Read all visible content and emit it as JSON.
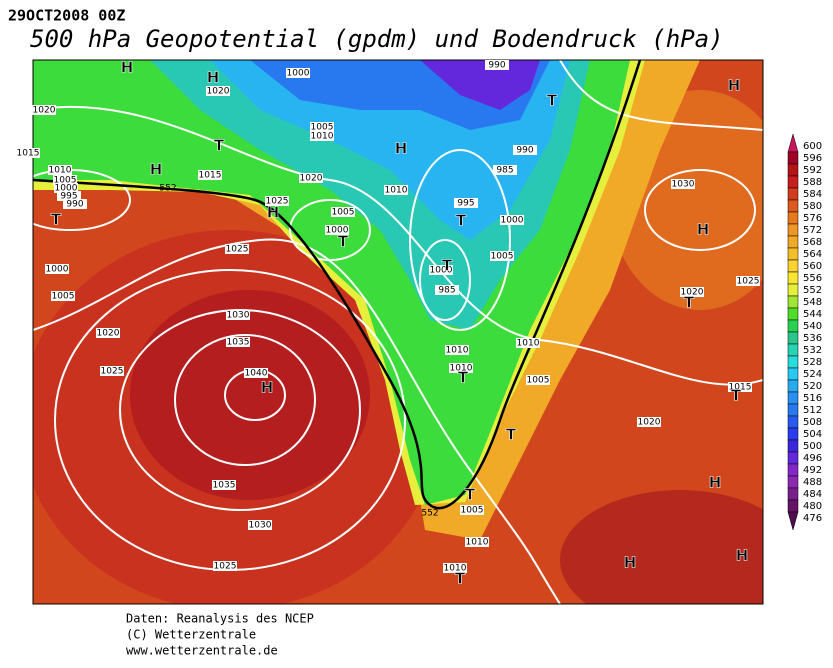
{
  "header": {
    "date": "29OCT2008 00Z",
    "title": "500 hPa Geopotential (gpdm) und Bodendruck (hPa)"
  },
  "footer": [
    "Daten: Reanalysis des NCEP",
    "(C) Wetterzentrale",
    "www.wetterzentrale.de"
  ],
  "isobar_labels": [
    990,
    1000,
    1020,
    1020,
    1005,
    1010,
    1015,
    990,
    1010,
    1015,
    1005,
    1020,
    1000,
    995,
    985,
    1010,
    990,
    1025,
    995,
    1005,
    1000,
    1000,
    1025,
    1005,
    1000,
    1000,
    985,
    1005,
    1030,
    1020,
    1025,
    1030,
    1020,
    1035,
    1010,
    1010,
    1010,
    1040,
    1025,
    1005,
    1015,
    1020,
    1035,
    1005,
    1030,
    1010,
    1025,
    1010
  ],
  "contour_labels": [
    552,
    552
  ],
  "centers": [
    "H",
    "H",
    "H",
    "H",
    "H",
    "H",
    "H",
    "H",
    "H",
    "H",
    "H",
    "T",
    "T",
    "T",
    "T",
    "T",
    "T",
    "T",
    "T",
    "T",
    "T",
    "T",
    "T"
  ],
  "colorbar": {
    "levels": [
      600,
      596,
      592,
      588,
      584,
      580,
      576,
      572,
      568,
      564,
      560,
      556,
      552,
      548,
      544,
      540,
      536,
      532,
      528,
      524,
      520,
      516,
      512,
      508,
      504,
      500,
      496,
      492,
      488,
      484,
      480,
      476
    ],
    "colors": [
      "#c8145a",
      "#a00028",
      "#b41414",
      "#c81e1e",
      "#d23c1e",
      "#dc5a1e",
      "#e6781e",
      "#f09628",
      "#f0aa28",
      "#f5be28",
      "#fad232",
      "#fae632",
      "#e6f03c",
      "#a0e632",
      "#50dc28",
      "#28d250",
      "#28c88c",
      "#28d2b4",
      "#28dcdc",
      "#28c8f0",
      "#28aaf0",
      "#2890f0",
      "#2878f0",
      "#285af0",
      "#283cf0",
      "#3c28dc",
      "#6428dc",
      "#8228c8",
      "#8c28b4",
      "#781e8c",
      "#641464",
      "#500a50"
    ]
  }
}
